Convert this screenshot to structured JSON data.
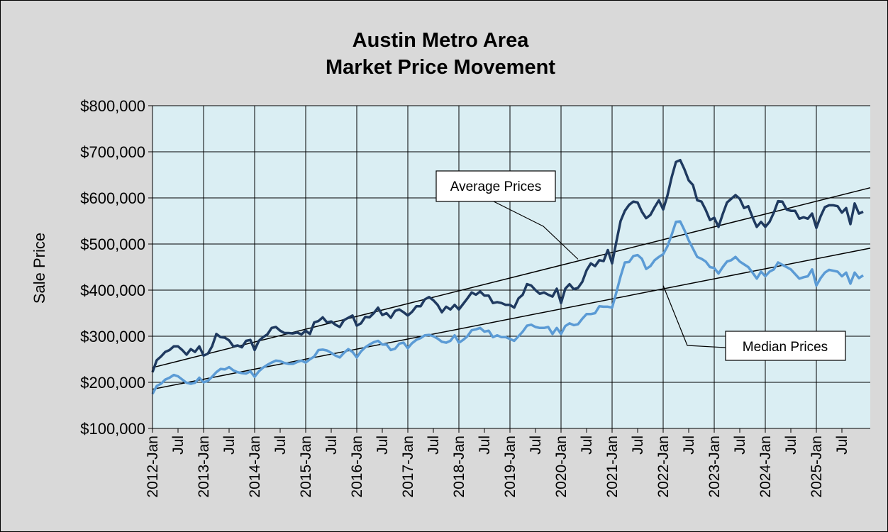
{
  "chart_data": {
    "type": "line",
    "title_lines": [
      "Austin Metro Area",
      "Market Price Movement"
    ],
    "ylabel": "Sale Price",
    "xlabel": "",
    "ylim": [
      100000,
      800000
    ],
    "yticks": [
      100000,
      200000,
      300000,
      400000,
      500000,
      600000,
      700000,
      800000
    ],
    "ytick_labels": [
      "$100,000",
      "$200,000",
      "$300,000",
      "$400,000",
      "$500,000",
      "$600,000",
      "$700,000",
      "$800,000"
    ],
    "x_start": "2012-Jan",
    "x_end": "2025-Dec",
    "x_tick_labels": [
      "2012-Jan",
      "Jul",
      "2013-Jan",
      "Jul",
      "2014-Jan",
      "Jul",
      "2015-Jan",
      "Jul",
      "2016-Jan",
      "Jul",
      "2017-Jan",
      "Jul",
      "2018-Jan",
      "Jul",
      "2019-Jan",
      "Jul",
      "2020-Jan",
      "Jul",
      "2021-Jan",
      "Jul",
      "2022-Jan",
      "Jul",
      "2023-Jan",
      "Jul",
      "2024-Jan",
      "Jul",
      "2025-Jan",
      "Jul"
    ],
    "grid": true,
    "colors": {
      "plot_bg": "#daeef3",
      "chart_bg": "#d9d9d9",
      "average": "#1f3a60",
      "median": "#5b9bd5",
      "gridline": "#000000",
      "trend": "#000000"
    },
    "series": [
      {
        "name": "Average Prices",
        "values": [
          222000,
          248000,
          256000,
          266000,
          270000,
          278000,
          278000,
          270000,
          260000,
          272000,
          266000,
          278000,
          258000,
          262000,
          278000,
          305000,
          298000,
          297000,
          291000,
          278000,
          280000,
          276000,
          290000,
          292000,
          270000,
          290000,
          298000,
          304000,
          318000,
          320000,
          312000,
          307000,
          307000,
          306000,
          308000,
          304000,
          312000,
          305000,
          330000,
          333000,
          341000,
          330000,
          332000,
          325000,
          320000,
          335000,
          340000,
          345000,
          323000,
          328000,
          342000,
          341000,
          350000,
          362000,
          346000,
          350000,
          340000,
          355000,
          358000,
          352000,
          345000,
          353000,
          365000,
          365000,
          380000,
          385000,
          378000,
          368000,
          352000,
          364000,
          358000,
          368000,
          358000,
          370000,
          382000,
          395000,
          390000,
          397000,
          388000,
          388000,
          372000,
          374000,
          372000,
          368000,
          368000,
          362000,
          382000,
          390000,
          413000,
          410000,
          400000,
          392000,
          395000,
          390000,
          386000,
          403000,
          372000,
          403000,
          413000,
          402000,
          405000,
          418000,
          443000,
          458000,
          452000,
          465000,
          463000,
          487000,
          458000,
          505000,
          550000,
          572000,
          585000,
          592000,
          590000,
          570000,
          556000,
          563000,
          580000,
          595000,
          575000,
          605000,
          645000,
          678000,
          682000,
          662000,
          638000,
          628000,
          595000,
          592000,
          574000,
          552000,
          557000,
          537000,
          565000,
          590000,
          598000,
          606000,
          598000,
          578000,
          582000,
          558000,
          537000,
          548000,
          537000,
          548000,
          568000,
          593000,
          592000,
          575000,
          572000,
          572000,
          555000,
          558000,
          555000,
          566000,
          535000,
          560000,
          580000,
          584000,
          584000,
          582000,
          568000,
          578000,
          543000,
          588000,
          566000,
          570000
        ]
      },
      {
        "name": "Median Prices",
        "values": [
          175000,
          192000,
          197000,
          206000,
          210000,
          216000,
          213000,
          206000,
          199000,
          197000,
          199000,
          210000,
          200000,
          203000,
          212000,
          222000,
          229000,
          228000,
          233000,
          226000,
          222000,
          220000,
          219000,
          224000,
          212000,
          224000,
          232000,
          238000,
          243000,
          247000,
          246000,
          242000,
          240000,
          240000,
          244000,
          247000,
          243000,
          250000,
          256000,
          270000,
          271000,
          269000,
          264000,
          258000,
          254000,
          264000,
          272000,
          266000,
          254000,
          267000,
          276000,
          282000,
          287000,
          290000,
          282000,
          282000,
          270000,
          273000,
          284000,
          286000,
          274000,
          285000,
          292000,
          296000,
          302000,
          303000,
          300000,
          295000,
          288000,
          286000,
          290000,
          302000,
          286000,
          292000,
          300000,
          313000,
          315000,
          318000,
          310000,
          312000,
          298000,
          302000,
          298000,
          298000,
          294000,
          290000,
          300000,
          310000,
          323000,
          325000,
          320000,
          318000,
          318000,
          320000,
          305000,
          318000,
          305000,
          322000,
          328000,
          324000,
          326000,
          338000,
          348000,
          348000,
          350000,
          365000,
          364000,
          364000,
          362000,
          395000,
          430000,
          460000,
          461000,
          474000,
          476000,
          468000,
          446000,
          452000,
          465000,
          472000,
          478000,
          495000,
          520000,
          548000,
          549000,
          530000,
          508000,
          490000,
          472000,
          468000,
          462000,
          450000,
          448000,
          436000,
          450000,
          462000,
          465000,
          472000,
          462000,
          456000,
          450000,
          438000,
          425000,
          440000,
          430000,
          440000,
          445000,
          460000,
          455000,
          450000,
          445000,
          435000,
          425000,
          428000,
          430000,
          445000,
          410000,
          426000,
          438000,
          444000,
          442000,
          440000,
          430000,
          438000,
          414000,
          438000,
          426000,
          432000
        ]
      }
    ],
    "trendlines": [
      {
        "name": "Average Prices trend",
        "start": 232000,
        "end": 622000
      },
      {
        "name": "Median Prices trend",
        "start": 185000,
        "end": 491000
      }
    ],
    "annotations": [
      {
        "text": "Average Prices",
        "target_month": 100,
        "target_value": 467000
      },
      {
        "text": "Median Prices",
        "target_month": 120,
        "target_value": 410000
      }
    ]
  }
}
